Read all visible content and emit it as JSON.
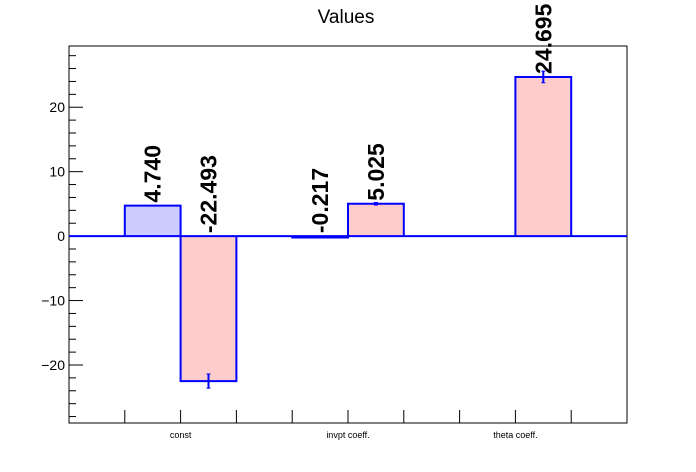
{
  "chart_data": {
    "type": "bar",
    "title": "Values",
    "xlabel": "",
    "ylabel": "",
    "ylim": [
      -29,
      29.5
    ],
    "yticks": [
      -20,
      -10,
      0,
      10,
      20
    ],
    "ytick_labels": [
      "−20",
      "−10",
      "0",
      "10",
      "20"
    ],
    "groups": [
      "const",
      "invpt coeff.",
      "theta coeff."
    ],
    "grid": false,
    "legend": "none",
    "colors": {
      "series1_fill": "#ccccff",
      "series2_fill": "#ffcccc",
      "outline": "#0000ff",
      "axis": "#000000"
    },
    "series": [
      {
        "values": [
          4.74,
          -0.217,
          null
        ],
        "labels": [
          "4.740",
          "-0.217",
          ""
        ],
        "errors": [
          0,
          0,
          0
        ]
      },
      {
        "values": [
          -22.493,
          5.025,
          24.695
        ],
        "labels": [
          "-22.493",
          "5.025",
          "24.695"
        ],
        "errors": [
          1.1,
          0.2,
          0.9
        ]
      }
    ]
  }
}
